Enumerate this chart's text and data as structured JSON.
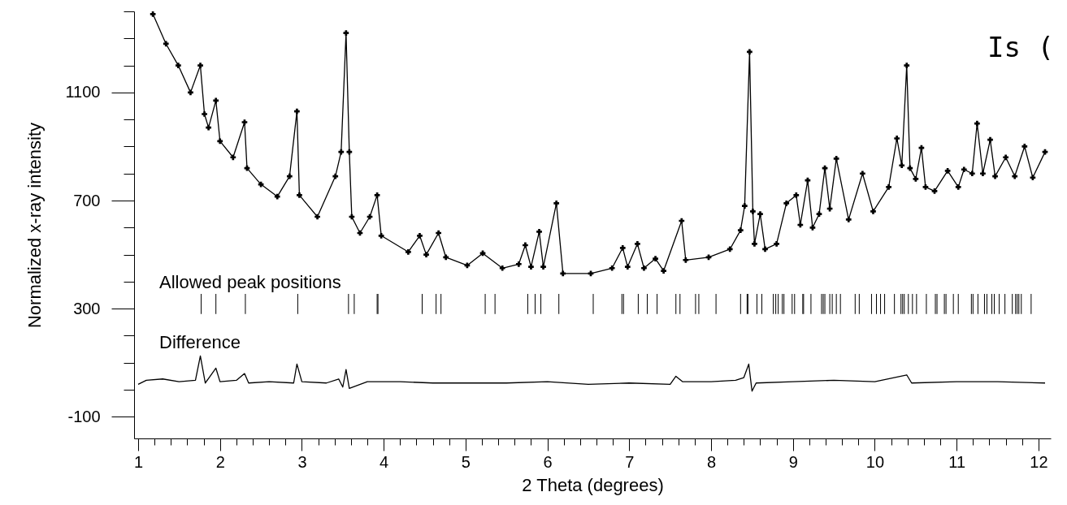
{
  "chart_data": {
    "type": "line",
    "xlabel": "2 Theta (degrees)",
    "ylabel": "Normalized x-ray intensity",
    "annotations": [
      "Is ("
    ],
    "xlim": [
      1,
      12.1
    ],
    "ylim": [
      -180,
      1400
    ],
    "xticks": [
      1,
      {
        "value": 1.2,
        "label": null
      },
      {
        "value": 1.4,
        "label": null
      },
      {
        "value": 1.6,
        "label": null
      },
      {
        "value": 1.8,
        "label": null
      },
      2,
      {
        "value": 2.2,
        "label": null
      },
      {
        "value": 2.4,
        "label": null
      },
      {
        "value": 2.6,
        "label": null
      },
      {
        "value": 2.8,
        "label": null
      },
      3,
      {
        "value": 3.2,
        "label": null
      },
      {
        "value": 3.4,
        "label": null
      },
      {
        "value": 3.6,
        "label": null
      },
      {
        "value": 3.8,
        "label": null
      },
      4,
      {
        "value": 4.2,
        "label": null
      },
      {
        "value": 4.4,
        "label": null
      },
      {
        "value": 4.6,
        "label": null
      },
      {
        "value": 4.8,
        "label": null
      },
      5,
      {
        "value": 5.2,
        "label": null
      },
      {
        "value": 5.4,
        "label": null
      },
      {
        "value": 5.6,
        "label": null
      },
      {
        "value": 5.8,
        "label": null
      },
      6,
      {
        "value": 6.2,
        "label": null
      },
      {
        "value": 6.4,
        "label": null
      },
      {
        "value": 6.6,
        "label": null
      },
      {
        "value": 6.8,
        "label": null
      },
      7,
      {
        "value": 7.2,
        "label": null
      },
      {
        "value": 7.4,
        "label": null
      },
      {
        "value": 7.6,
        "label": null
      },
      {
        "value": 7.8,
        "label": null
      },
      8,
      {
        "value": 8.2,
        "label": null
      },
      {
        "value": 8.4,
        "label": null
      },
      {
        "value": 8.6,
        "label": null
      },
      {
        "value": 8.8,
        "label": null
      },
      9,
      {
        "value": 9.2,
        "label": null
      },
      {
        "value": 9.4,
        "label": null
      },
      {
        "value": 9.6,
        "label": null
      },
      {
        "value": 9.8,
        "label": null
      },
      10,
      {
        "value": 10.2,
        "label": null
      },
      {
        "value": 10.4,
        "label": null
      },
      {
        "value": 10.6,
        "label": null
      },
      {
        "value": 10.8,
        "label": null
      },
      11,
      {
        "value": 11.2,
        "label": null
      },
      {
        "value": 11.4,
        "label": null
      },
      {
        "value": 11.6,
        "label": null
      },
      {
        "value": 11.8,
        "label": null
      },
      12
    ],
    "yticks": [
      -100,
      {
        "value": 0,
        "label": null
      },
      {
        "value": 100,
        "label": null
      },
      {
        "value": 200,
        "label": null
      },
      300,
      {
        "value": 400,
        "label": null
      },
      {
        "value": 500,
        "label": null
      },
      {
        "value": 600,
        "label": null
      },
      700,
      {
        "value": 800,
        "label": null
      },
      {
        "value": 900,
        "label": null
      },
      {
        "value": 1000,
        "label": null
      },
      1100,
      {
        "value": 1200,
        "label": null
      },
      {
        "value": 1300,
        "label": null
      },
      {
        "value": 1400,
        "label": null
      }
    ],
    "series": [
      {
        "marker": "cross",
        "color": "#000000",
        "x": [
          1.18,
          1.34,
          1.49,
          1.64,
          1.76,
          1.81,
          1.86,
          1.95,
          2.0,
          2.16,
          2.3,
          2.33,
          2.5,
          2.7,
          2.85,
          2.94,
          2.97,
          3.19,
          3.41,
          3.48,
          3.54,
          3.58,
          3.61,
          3.71,
          3.83,
          3.92,
          3.97,
          4.3,
          4.44,
          4.52,
          4.67,
          4.76,
          5.02,
          5.21,
          5.45,
          5.65,
          5.73,
          5.8,
          5.9,
          5.95,
          6.11,
          6.19,
          6.53,
          6.79,
          6.92,
          6.98,
          7.1,
          7.18,
          7.32,
          7.42,
          7.64,
          7.69,
          7.97,
          8.23,
          8.36,
          8.41,
          8.47,
          8.51,
          8.53,
          8.6,
          8.66,
          8.8,
          8.92,
          9.04,
          9.09,
          9.18,
          9.24,
          9.32,
          9.39,
          9.45,
          9.53,
          9.68,
          9.85,
          9.98,
          10.17,
          10.27,
          10.33,
          10.39,
          10.43,
          10.5,
          10.57,
          10.62,
          10.73,
          10.89,
          11.02,
          11.09,
          11.19,
          11.25,
          11.32,
          11.41,
          11.47,
          11.6,
          11.71,
          11.83,
          11.93,
          12.08
        ],
        "values": [
          1390,
          1280,
          1200,
          1100,
          1200,
          1020,
          970,
          1070,
          920,
          860,
          990,
          820,
          760,
          715,
          790,
          1030,
          720,
          640,
          790,
          880,
          1320,
          880,
          640,
          580,
          640,
          720,
          570,
          510,
          570,
          500,
          580,
          490,
          460,
          505,
          450,
          465,
          535,
          455,
          585,
          455,
          690,
          430,
          430,
          450,
          525,
          455,
          540,
          450,
          485,
          440,
          625,
          480,
          490,
          520,
          590,
          680,
          1250,
          660,
          540,
          650,
          520,
          540,
          690,
          720,
          610,
          775,
          600,
          650,
          820,
          670,
          855,
          630,
          800,
          660,
          750,
          930,
          830,
          1200,
          820,
          780,
          895,
          750,
          735,
          810,
          750,
          815,
          800,
          985,
          800,
          925,
          790,
          860,
          790,
          900,
          785,
          880
        ]
      },
      {
        "type": "bar",
        "name": "Allowed peak positions",
        "color": "#000000",
        "base": [
          280,
          280,
          280,
          280,
          280,
          280,
          280,
          280,
          280,
          280,
          280,
          280,
          280,
          280,
          280,
          280,
          280,
          280,
          280,
          280,
          280,
          280,
          280,
          280,
          280,
          280,
          280,
          280,
          280,
          280,
          280,
          280,
          280,
          280,
          280,
          280,
          280,
          280,
          280,
          280,
          280,
          280,
          280,
          280,
          280,
          280,
          280,
          280,
          280,
          280,
          280,
          280,
          280,
          280,
          280,
          280,
          280,
          280,
          280,
          280,
          280,
          280,
          280,
          280,
          280,
          280,
          280,
          280,
          280,
          280,
          280,
          280,
          280,
          280,
          280,
          280,
          280,
          280,
          280,
          280,
          280,
          280,
          280,
          280,
          280
        ],
        "x": [
          1.77,
          1.95,
          2.31,
          2.95,
          3.57,
          3.64,
          3.92,
          3.93,
          4.47,
          4.64,
          4.7,
          5.24,
          5.36,
          5.76,
          5.85,
          5.92,
          6.14,
          6.56,
          6.91,
          6.93,
          7.11,
          7.22,
          7.34,
          7.57,
          7.62,
          7.81,
          7.85,
          8.06,
          8.36,
          8.44,
          8.45,
          8.56,
          8.62,
          8.76,
          8.79,
          8.82,
          8.87,
          8.89,
          8.99,
          9.02,
          9.12,
          9.13,
          9.22,
          9.35,
          9.37,
          9.39,
          9.45,
          9.48,
          9.53,
          9.58,
          9.76,
          9.81,
          9.96,
          10.02,
          10.07,
          10.12,
          10.24,
          10.32,
          10.34,
          10.36,
          10.41,
          10.46,
          10.51,
          10.63,
          10.74,
          10.76,
          10.85,
          10.87,
          10.96,
          11.02,
          11.18,
          11.2,
          11.26,
          11.34,
          11.37,
          11.43,
          11.46,
          11.52,
          11.59,
          11.68,
          11.72,
          11.74,
          11.76,
          11.79,
          11.91
        ],
        "values": [
          75,
          75,
          75,
          75,
          75,
          75,
          75,
          75,
          75,
          75,
          75,
          75,
          75,
          75,
          75,
          75,
          75,
          75,
          75,
          75,
          75,
          75,
          75,
          75,
          75,
          75,
          75,
          75,
          75,
          75,
          75,
          75,
          75,
          75,
          75,
          75,
          75,
          75,
          75,
          75,
          75,
          75,
          75,
          75,
          75,
          75,
          75,
          75,
          75,
          75,
          75,
          75,
          75,
          75,
          75,
          75,
          75,
          75,
          75,
          75,
          75,
          75,
          75,
          75,
          75,
          75,
          75,
          75,
          75,
          75,
          75,
          75,
          75,
          75,
          75,
          75,
          75,
          75,
          75,
          75,
          75,
          75,
          75,
          75,
          75
        ]
      },
      {
        "type": "line",
        "name": "Difference",
        "color": "#000000",
        "x": [
          1.0,
          1.1,
          1.3,
          1.5,
          1.7,
          1.76,
          1.82,
          1.95,
          2.0,
          2.2,
          2.3,
          2.35,
          2.6,
          2.9,
          2.94,
          3.0,
          3.3,
          3.45,
          3.5,
          3.54,
          3.58,
          3.8,
          4.2,
          4.6,
          5.0,
          5.5,
          6.0,
          6.5,
          7.0,
          7.5,
          7.57,
          7.65,
          8.0,
          8.3,
          8.4,
          8.46,
          8.5,
          8.55,
          9.0,
          9.5,
          10.0,
          10.39,
          10.45,
          11.0,
          11.5,
          12.08
        ],
        "values": [
          20,
          35,
          40,
          30,
          35,
          125,
          25,
          80,
          30,
          35,
          60,
          25,
          30,
          25,
          95,
          30,
          25,
          40,
          10,
          75,
          5,
          30,
          30,
          25,
          25,
          25,
          30,
          20,
          25,
          20,
          50,
          30,
          30,
          35,
          45,
          95,
          -5,
          25,
          30,
          35,
          30,
          55,
          25,
          30,
          30,
          25
        ]
      }
    ]
  }
}
